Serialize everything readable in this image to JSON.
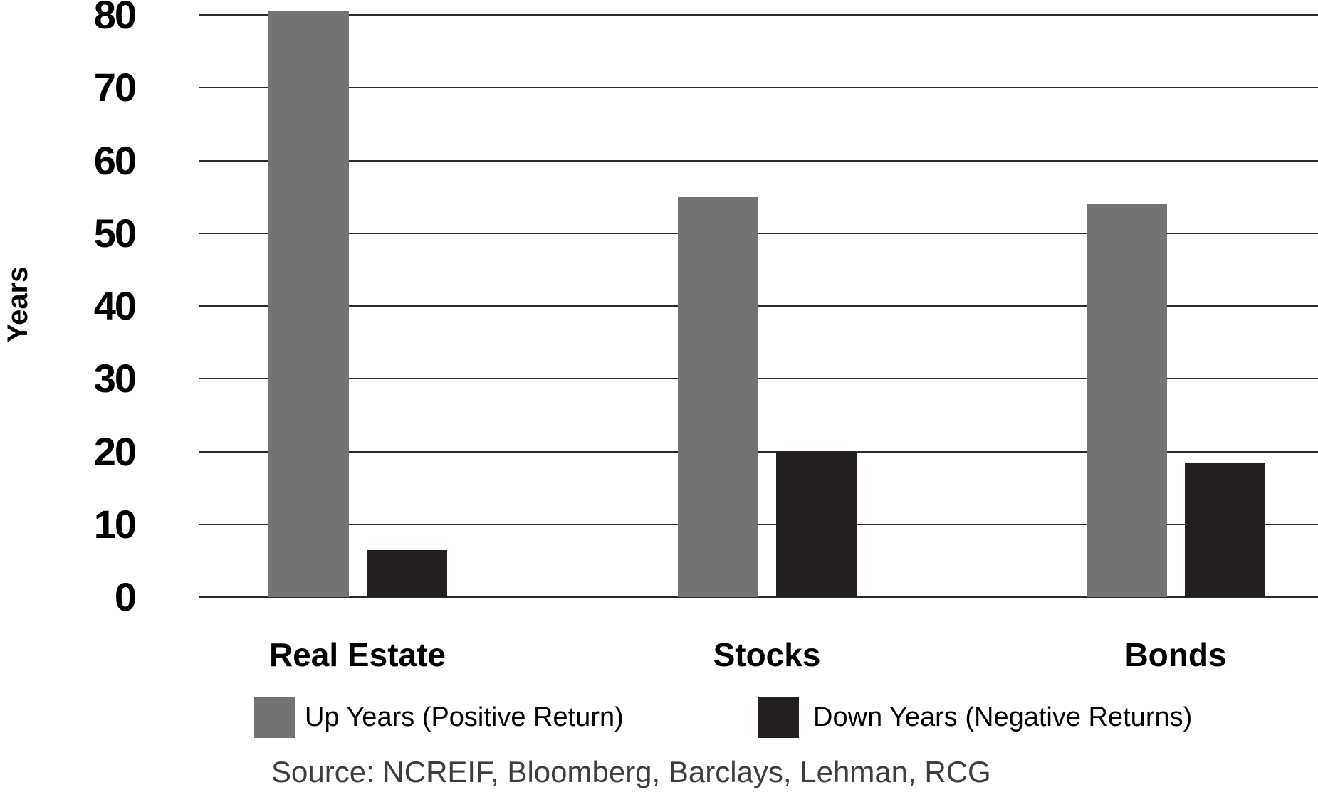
{
  "chart_data": {
    "type": "bar",
    "categories": [
      "Real Estate",
      "Stocks",
      "Bonds"
    ],
    "series": [
      {
        "name": "Up Years (Positive Return)",
        "color": "#737373",
        "values": [
          80.5,
          55,
          54
        ]
      },
      {
        "name": "Down Years (Negative Returns)",
        "color": "#231f20",
        "values": [
          6.5,
          20,
          18.5
        ]
      }
    ],
    "ylabel": "Years",
    "xlabel": "",
    "yticks": [
      0,
      10,
      20,
      30,
      40,
      50,
      60,
      70,
      80
    ],
    "ylim": [
      0,
      80
    ],
    "grid": true,
    "legend_position": "bottom",
    "source": "Source: NCREIF, Bloomberg, Barclays, Lehman, RCG"
  },
  "colors": {
    "up_bar": "#737373",
    "down_bar": "#231f20",
    "gridline": "#2b2b2b",
    "axis_text": "#000000",
    "source_text": "#3d3d3d",
    "background": "#ffffff"
  }
}
